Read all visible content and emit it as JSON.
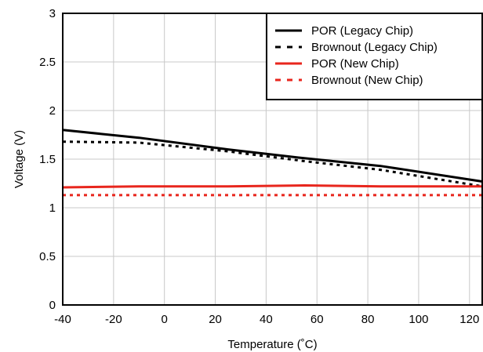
{
  "chart_data": {
    "type": "line",
    "title": "",
    "xlabel": "Temperature (˚C)",
    "ylabel": "Voltage (V)",
    "xlim": [
      -40,
      125
    ],
    "ylim": [
      0,
      3
    ],
    "xticks": [
      -40,
      -20,
      0,
      20,
      40,
      60,
      80,
      100,
      120
    ],
    "yticks": [
      0,
      0.5,
      1,
      1.5,
      2,
      2.5,
      3
    ],
    "xtick_labels": [
      "-40",
      "-20",
      "0",
      "20",
      "40",
      "60",
      "80",
      "100",
      "120"
    ],
    "ytick_labels": [
      "0",
      "0.5",
      "1",
      "1.5",
      "2",
      "2.5",
      "3"
    ],
    "grid": true,
    "legend_position": "top-right",
    "series": [
      {
        "name": "POR (Legacy Chip)",
        "color": "#000000",
        "dash": "solid",
        "x": [
          -40,
          -10,
          25,
          55,
          85,
          125
        ],
        "y": [
          1.8,
          1.72,
          1.6,
          1.51,
          1.43,
          1.27
        ]
      },
      {
        "name": "Brownout (Legacy Chip)",
        "color": "#000000",
        "dash": "dotted",
        "x": [
          -40,
          -10,
          25,
          55,
          85,
          125
        ],
        "y": [
          1.68,
          1.67,
          1.58,
          1.48,
          1.39,
          1.22
        ]
      },
      {
        "name": "POR (New Chip)",
        "color": "#e8261d",
        "dash": "solid",
        "x": [
          -40,
          -10,
          25,
          55,
          85,
          125
        ],
        "y": [
          1.21,
          1.22,
          1.22,
          1.23,
          1.22,
          1.22
        ]
      },
      {
        "name": "Brownout (New Chip)",
        "color": "#e8261d",
        "dash": "dotted",
        "x": [
          -40,
          -10,
          25,
          55,
          85,
          125
        ],
        "y": [
          1.13,
          1.13,
          1.13,
          1.13,
          1.13,
          1.13
        ]
      }
    ]
  }
}
